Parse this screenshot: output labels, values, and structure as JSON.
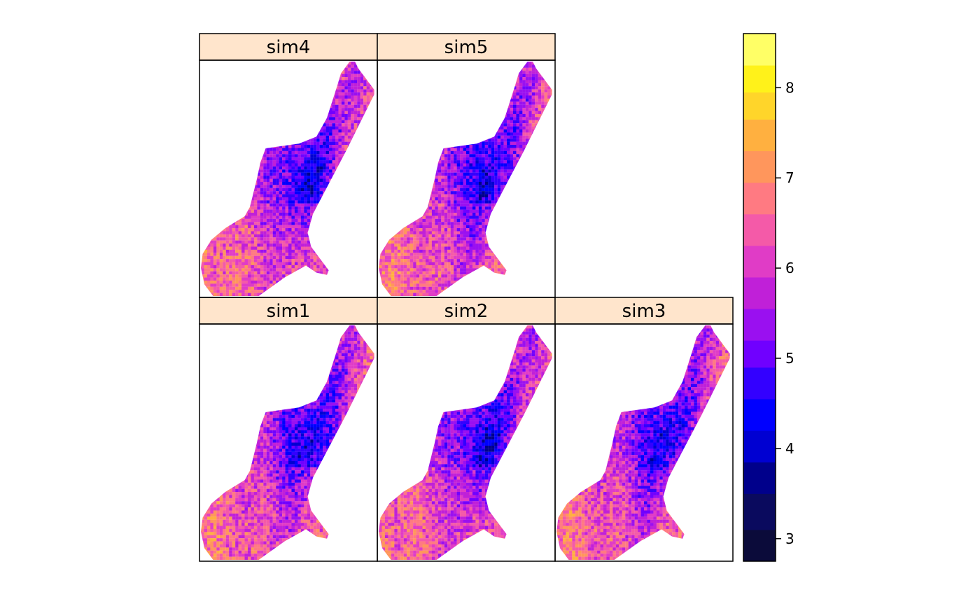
{
  "chart_data": {
    "type": "heatmap",
    "layout": "lattice levelplot, 3 columns x 2 rows",
    "panels": [
      {
        "name": "sim1"
      },
      {
        "name": "sim2"
      },
      {
        "name": "sim3"
      },
      {
        "name": "sim4"
      },
      {
        "name": "sim5"
      }
    ],
    "colorkey": {
      "range": [
        2.75,
        8.6
      ],
      "ticks": [
        "3",
        "4",
        "5",
        "6",
        "7",
        "8"
      ],
      "tick_values": [
        3,
        4,
        5,
        6,
        7,
        8
      ],
      "bins": [
        {
          "from": 2.75,
          "to": 3.1,
          "color": "#0b0b3a"
        },
        {
          "from": 3.1,
          "to": 3.5,
          "color": "#0a0a5e"
        },
        {
          "from": 3.5,
          "to": 3.85,
          "color": "#00008b"
        },
        {
          "from": 3.85,
          "to": 4.2,
          "color": "#0000d2"
        },
        {
          "from": 4.2,
          "to": 4.55,
          "color": "#0000ff"
        },
        {
          "from": 4.55,
          "to": 4.9,
          "color": "#3300ff"
        },
        {
          "from": 4.9,
          "to": 5.2,
          "color": "#7000ff"
        },
        {
          "from": 5.2,
          "to": 5.55,
          "color": "#9a10f0"
        },
        {
          "from": 5.55,
          "to": 5.9,
          "color": "#c020d8"
        },
        {
          "from": 5.9,
          "to": 6.25,
          "color": "#e03cc6"
        },
        {
          "from": 6.25,
          "to": 6.6,
          "color": "#f45aa8"
        },
        {
          "from": 6.6,
          "to": 6.95,
          "color": "#ff7a82"
        },
        {
          "from": 6.95,
          "to": 7.3,
          "color": "#ff965c"
        },
        {
          "from": 7.3,
          "to": 7.65,
          "color": "#ffb040"
        },
        {
          "from": 7.65,
          "to": 7.95,
          "color": "#ffd52a"
        },
        {
          "from": 7.95,
          "to": 8.25,
          "color": "#fff21a"
        },
        {
          "from": 8.25,
          "to": 8.6,
          "color": "#ffff66"
        }
      ]
    },
    "strip_background": "#ffe5cc",
    "grid": false
  }
}
